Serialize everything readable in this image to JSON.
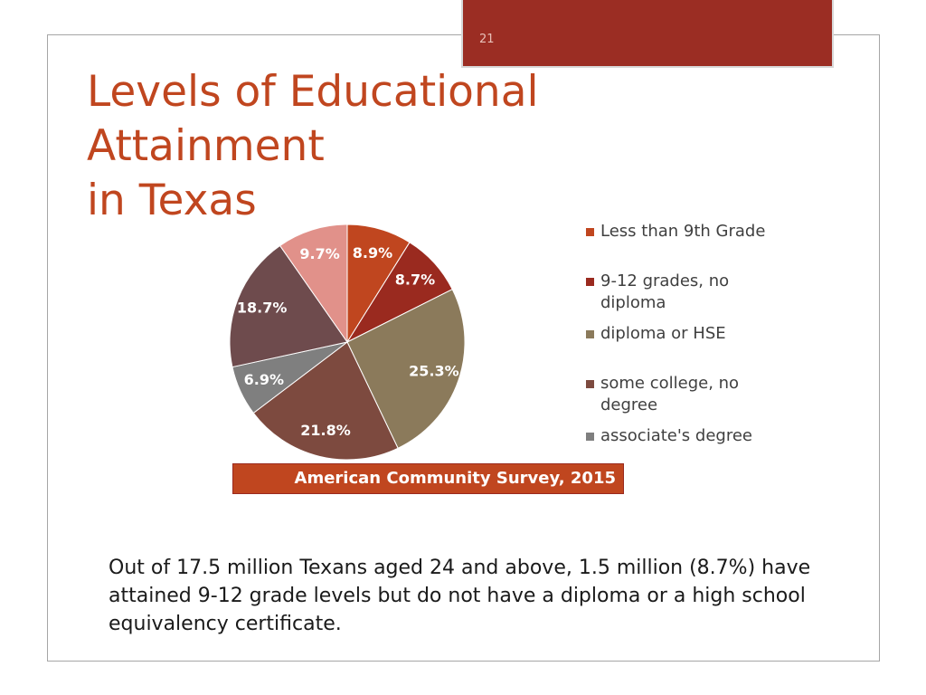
{
  "slide_number": "21",
  "chart_data": {
    "type": "pie",
    "title": "Levels of Educational Attainment\nin Texas",
    "categories": [
      "Less than 9th Grade",
      "9-12 grades, no diploma",
      "diploma or HSE",
      "some college, no degree",
      "associate's degree",
      null,
      null
    ],
    "values": [
      8.9,
      8.7,
      25.3,
      21.8,
      6.9,
      18.7,
      9.7
    ],
    "value_labels": [
      "8.9%",
      "8.7%",
      "25.3%",
      "21.8%",
      "6.9%",
      "18.7%",
      "9.7%"
    ],
    "colors": [
      "#c0461f",
      "#9a2a1f",
      "#8b7a5b",
      "#7d4a3f",
      "#7f7f7f",
      "#6e4b4d",
      "#e1918a"
    ],
    "source": "American Community Survey, 2015"
  },
  "body": "Out of 17.5 million Texans aged 24 and above, 1.5 million (8.7%) have attained 9-12 grade levels but do not have a diploma or a high school equivalency certificate."
}
